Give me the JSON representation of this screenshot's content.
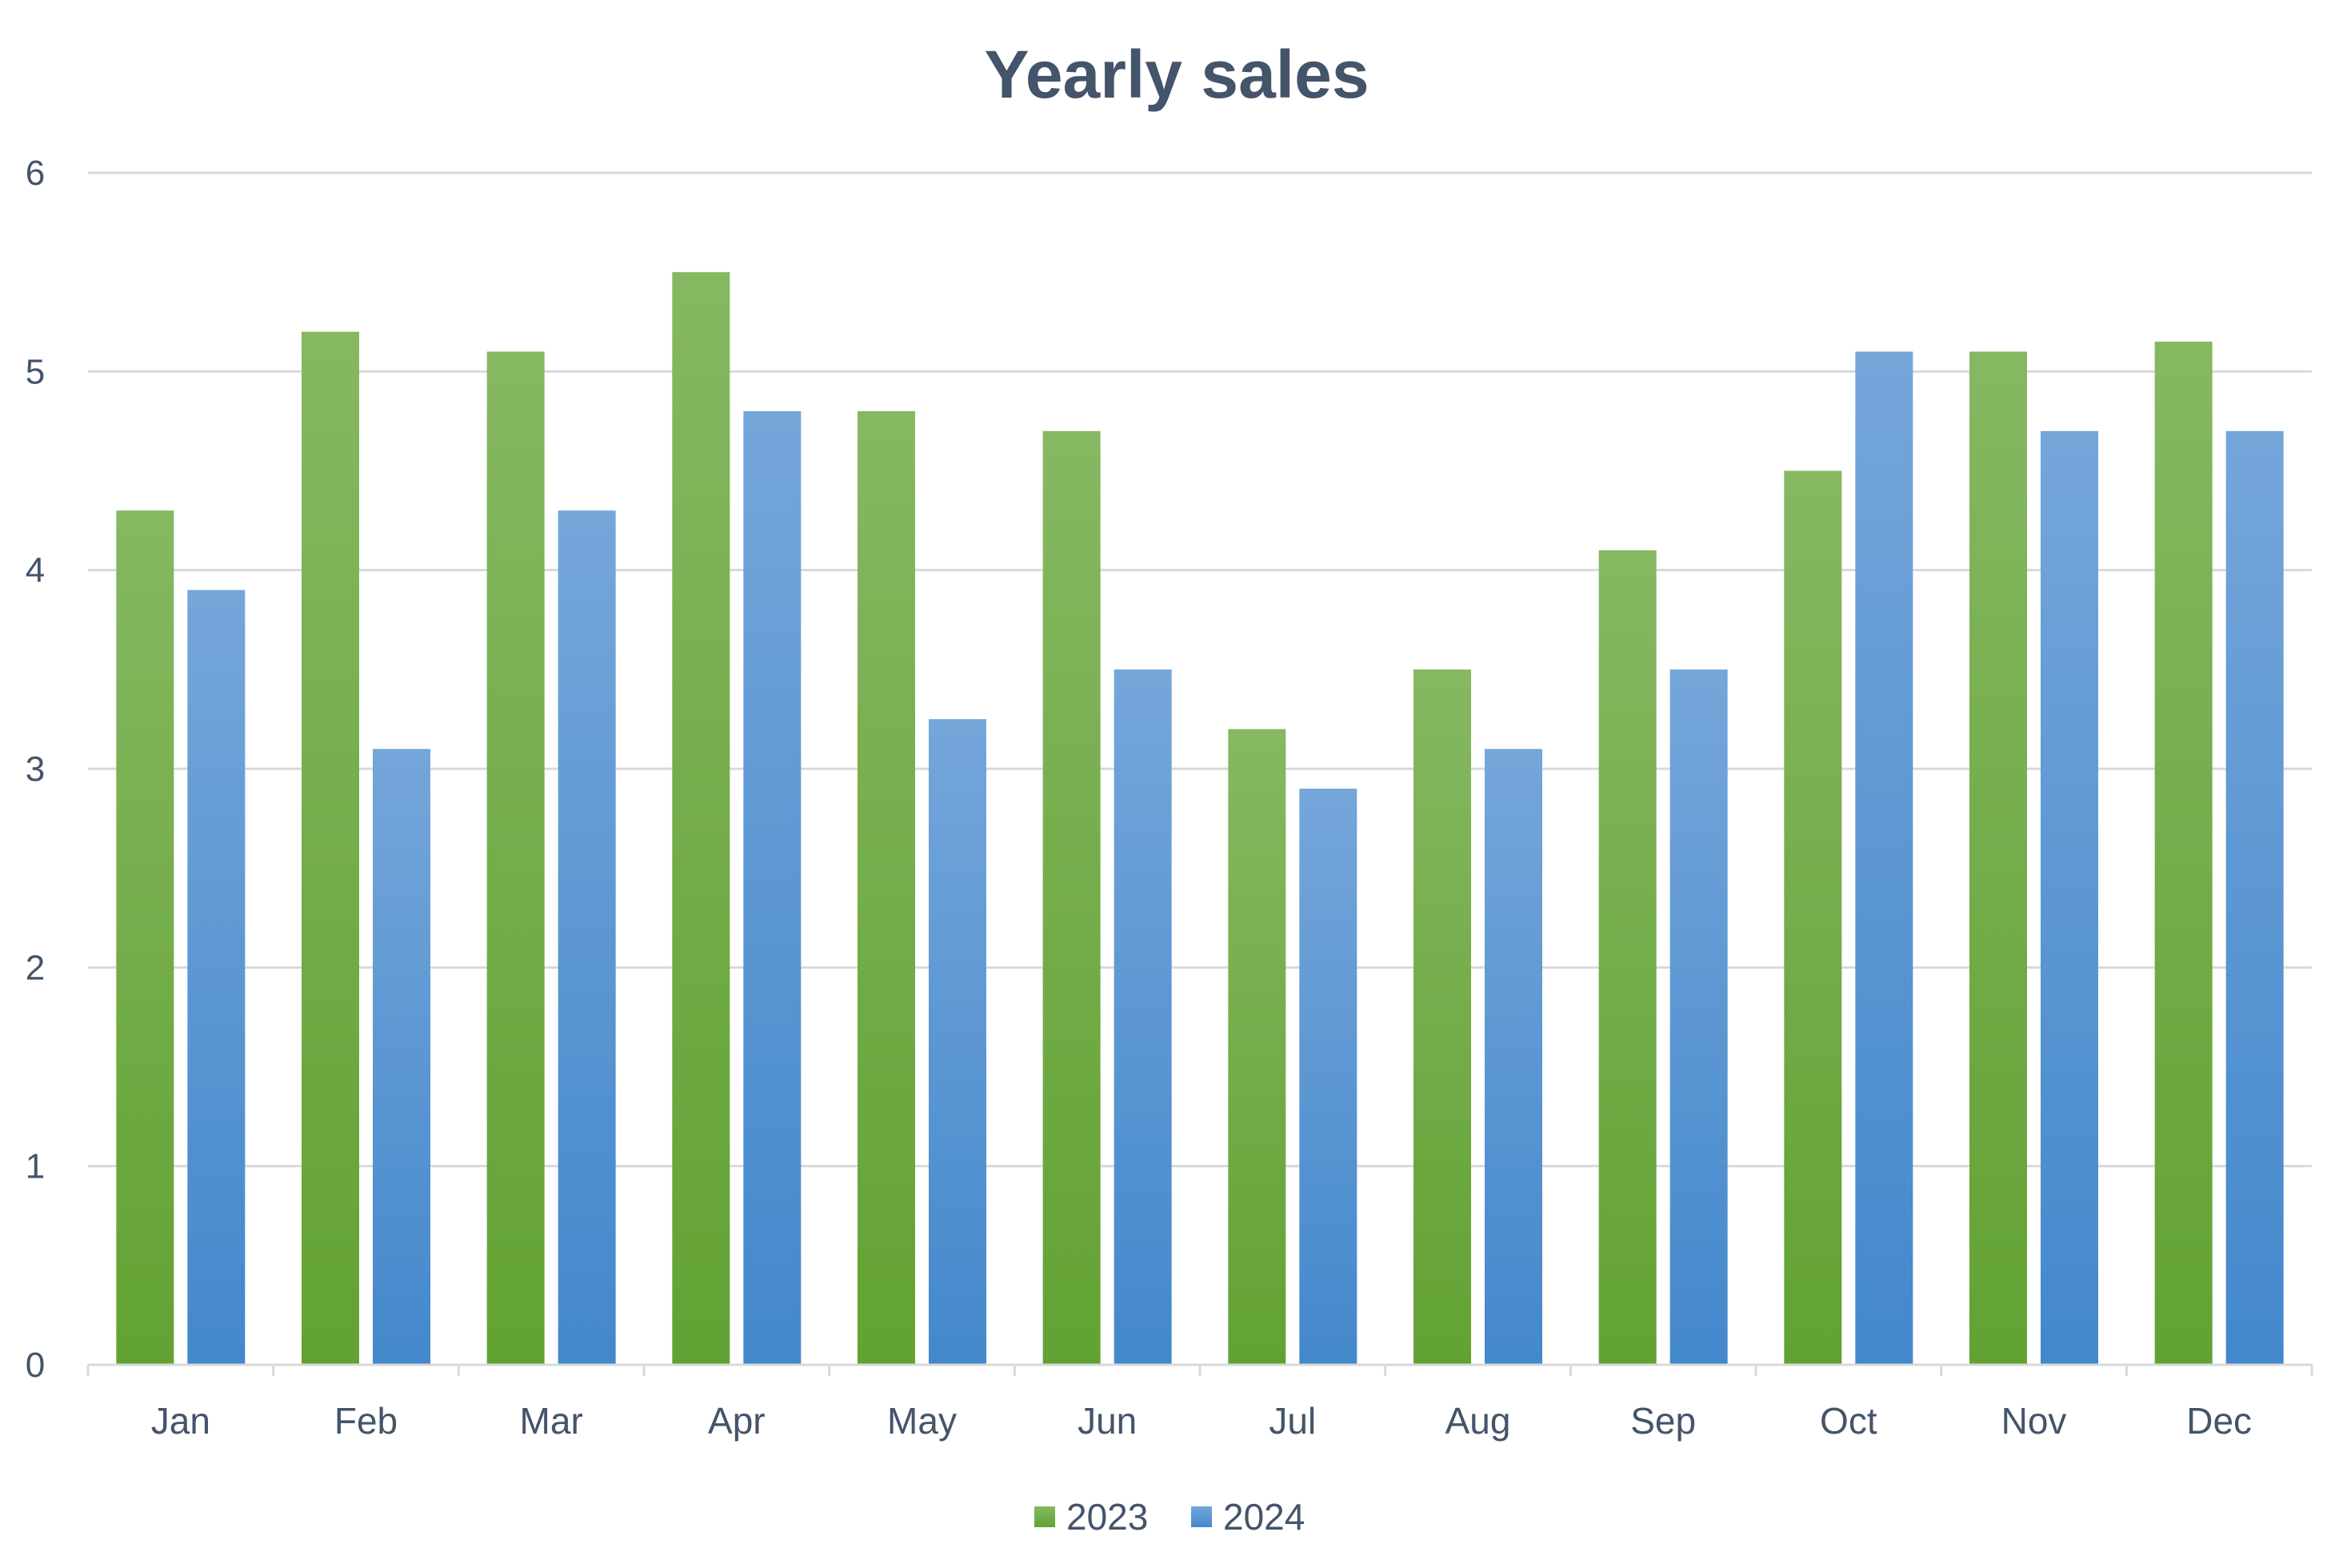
{
  "chart_data": {
    "type": "bar",
    "title": "Yearly sales",
    "xlabel": "",
    "ylabel": "",
    "categories": [
      "Jan",
      "Feb",
      "Mar",
      "Apr",
      "May",
      "Jun",
      "Jul",
      "Aug",
      "Sep",
      "Oct",
      "Nov",
      "Dec"
    ],
    "series": [
      {
        "name": "2023",
        "color": "#70AD47",
        "color_light": "#86B862",
        "color_dark": "#62A233",
        "values": [
          4.3,
          5.2,
          5.1,
          5.5,
          4.8,
          4.7,
          3.2,
          3.5,
          4.1,
          4.5,
          5.1,
          5.15
        ]
      },
      {
        "name": "2024",
        "color": "#5B9BD5",
        "color_light": "#75A6DA",
        "color_dark": "#4388CC",
        "values": [
          3.9,
          3.1,
          4.3,
          4.8,
          3.25,
          3.5,
          2.9,
          3.1,
          3.5,
          5.1,
          4.7,
          4.7
        ]
      }
    ],
    "ylim": [
      0,
      6
    ],
    "yticks": [
      0,
      1,
      2,
      3,
      4,
      5,
      6
    ],
    "grid": true,
    "legend": "bottom",
    "text_color": "#44546A",
    "grid_color": "#D9D9D9"
  }
}
